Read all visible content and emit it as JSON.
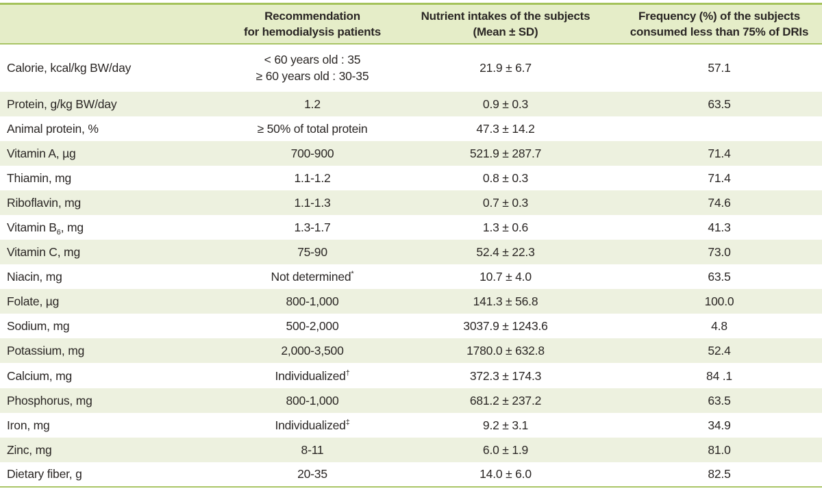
{
  "colors": {
    "border_green": "#a4c25a",
    "header_separator_green": "#a9c566",
    "header_bg": "#e5edc8",
    "stripe_bg": "#edf1df",
    "row_bg": "#ffffff",
    "text": "#2a2624"
  },
  "table": {
    "headers": {
      "nutrient": {
        "label": ""
      },
      "recommendation": {
        "lines": [
          "Recommendation",
          "for hemodialysis patients"
        ]
      },
      "intake": {
        "lines": [
          "Nutrient intakes of the subjects",
          "(Mean ± SD)"
        ]
      },
      "frequency": {
        "lines": [
          "Frequency (%) of the subjects",
          "consumed less than 75% of DRIs"
        ]
      }
    },
    "rows": [
      {
        "nutrient": "Calorie, kcal/kg BW/day",
        "rec_lines": [
          "< 60 years old : 35",
          "≥ 60 years old : 30-35"
        ],
        "intake": "21.9 ± 6.7",
        "freq": "57.1",
        "tall": true
      },
      {
        "nutrient": "Protein, g/kg BW/day",
        "rec": "1.2",
        "intake": "0.9 ± 0.3",
        "freq": "63.5"
      },
      {
        "nutrient": "Animal protein, %",
        "rec": "≥ 50% of total protein",
        "intake": "47.3 ± 14.2",
        "freq": ""
      },
      {
        "nutrient": "Vitamin A, µg",
        "rec": "700-900",
        "intake": "521.9 ± 287.7",
        "freq": "71.4"
      },
      {
        "nutrient": "Thiamin, mg",
        "rec": "1.1-1.2",
        "intake": "0.8 ± 0.3",
        "freq": "71.4"
      },
      {
        "nutrient": "Riboflavin, mg",
        "rec": "1.1-1.3",
        "intake": "0.7 ± 0.3",
        "freq": "74.6"
      },
      {
        "nutrient_parts": [
          {
            "t": "Vitamin B"
          },
          {
            "t": "6",
            "sub": true
          },
          {
            "t": ", mg"
          }
        ],
        "rec": "1.3-1.7",
        "intake": "1.3 ± 0.6",
        "freq": "41.3"
      },
      {
        "nutrient": "Vitamin C, mg",
        "rec": "75-90",
        "intake": "52.4 ± 22.3",
        "freq": "73.0"
      },
      {
        "nutrient": "Niacin, mg",
        "rec_parts": [
          {
            "t": "Not determined"
          },
          {
            "t": "*",
            "sup": true
          }
        ],
        "intake": "10.7 ± 4.0",
        "freq": "63.5"
      },
      {
        "nutrient": "Folate, µg",
        "rec": "800-1,000",
        "intake": "141.3 ± 56.8",
        "freq": "100.0"
      },
      {
        "nutrient": "Sodium, mg",
        "rec": "500-2,000",
        "intake": "3037.9 ± 1243.6",
        "freq": "4.8"
      },
      {
        "nutrient": "Potassium, mg",
        "rec": "2,000-3,500",
        "intake": "1780.0 ± 632.8",
        "freq": "52.4"
      },
      {
        "nutrient": "Calcium, mg",
        "rec_parts": [
          {
            "t": "Individualized"
          },
          {
            "t": "†",
            "sup": true
          }
        ],
        "intake": "372.3 ± 174.3",
        "freq": "84 .1"
      },
      {
        "nutrient": "Phosphorus, mg",
        "rec": "800-1,000",
        "intake": "681.2 ± 237.2",
        "freq": "63.5"
      },
      {
        "nutrient": "Iron, mg",
        "rec_parts": [
          {
            "t": "Individualized"
          },
          {
            "t": "‡",
            "sup": true
          }
        ],
        "intake": "9.2 ± 3.1",
        "freq": "34.9"
      },
      {
        "nutrient": "Zinc, mg",
        "rec": "8-11",
        "intake": "6.0 ± 1.9",
        "freq": "81.0"
      },
      {
        "nutrient": "Dietary fiber, g",
        "rec": "20-35",
        "intake": "14.0 ± 6.0",
        "freq": "82.5"
      }
    ]
  }
}
